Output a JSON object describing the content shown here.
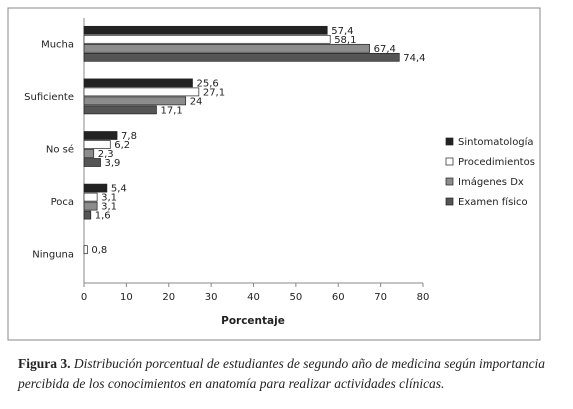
{
  "chart_data": {
    "type": "hbar",
    "xlabel": "Porcentaje",
    "categories": [
      "Mucha",
      "Suficiente",
      "No sé",
      "Poca",
      "Ninguna"
    ],
    "series": [
      {
        "name": "Sintomatología",
        "color": "#222222",
        "values": [
          57.4,
          25.6,
          7.8,
          5.4,
          null
        ],
        "value_labels": [
          "57,4",
          "25,6",
          "7,8",
          "5,4",
          null
        ]
      },
      {
        "name": "Procedimientos",
        "color": "#ffffff",
        "values": [
          58.1,
          27.1,
          6.2,
          3.1,
          0.8
        ],
        "value_labels": [
          "58,1",
          "27,1",
          "6,2",
          "3,1",
          "0,8"
        ]
      },
      {
        "name": "Imágenes Dx",
        "color": "#8c8c8c",
        "values": [
          67.4,
          24,
          2.3,
          3.1,
          null
        ],
        "value_labels": [
          "67,4",
          "24",
          "2,3",
          "3,1",
          null
        ]
      },
      {
        "name": "Examen físico",
        "color": "#555555",
        "values": [
          74.4,
          17.1,
          3.9,
          1.6,
          null
        ],
        "value_labels": [
          "74,4",
          "17,1",
          "3,9",
          "1,6",
          null
        ]
      }
    ],
    "xlim": [
      0,
      80
    ],
    "xticks": [
      0,
      10,
      20,
      30,
      40,
      50,
      60,
      70,
      80
    ],
    "legend": "right"
  },
  "caption": {
    "label": "Figura 3.",
    "text": "Distribución  porcentual de estudiantes de segundo año de medicina según importancia percibida de los conocimientos  en anatomía para realizar actividades clínicas."
  }
}
